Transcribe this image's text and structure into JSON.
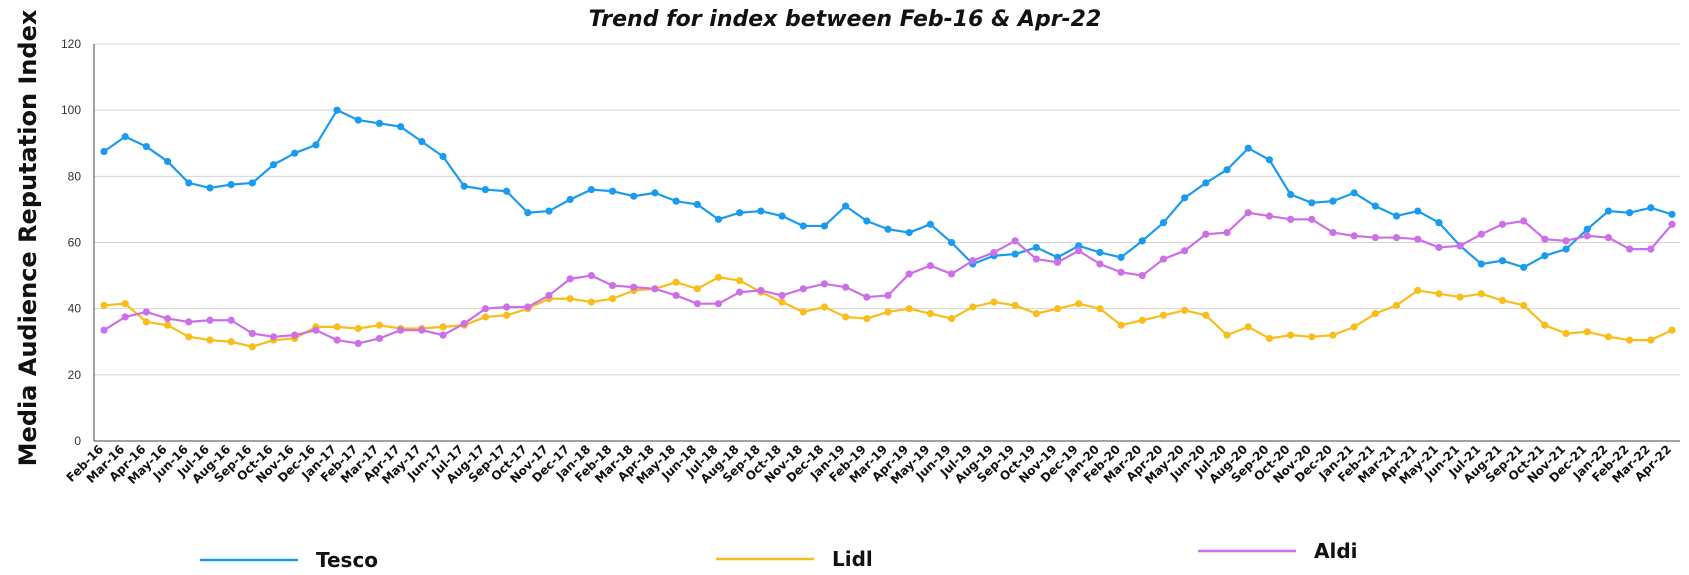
{
  "chart_data": {
    "type": "line",
    "title": "Trend for index between Feb-16 & Apr-22",
    "xlabel": "",
    "ylabel": "Media Audience Reputation Index",
    "ylim": [
      0,
      120
    ],
    "yticks": [
      0,
      20,
      40,
      60,
      80,
      100,
      120
    ],
    "grid": true,
    "legend_position": "bottom",
    "categories": [
      "Feb-16",
      "Mar-16",
      "Apr-16",
      "May-16",
      "Jun-16",
      "Jul-16",
      "Aug-16",
      "Sep-16",
      "Oct-16",
      "Nov-16",
      "Dec-16",
      "Jan-17",
      "Feb-17",
      "Mar-17",
      "Apr-17",
      "May-17",
      "Jun-17",
      "Jul-17",
      "Aug-17",
      "Sep-17",
      "Oct-17",
      "Nov-17",
      "Dec-17",
      "Jan-18",
      "Feb-18",
      "Mar-18",
      "Apr-18",
      "May-18",
      "Jun-18",
      "Jul-18",
      "Aug-18",
      "Sep-18",
      "Oct-18",
      "Nov-18",
      "Dec-18",
      "Jan-19",
      "Feb-19",
      "Mar-19",
      "Apr-19",
      "May-19",
      "Jun-19",
      "Jul-19",
      "Aug-19",
      "Sep-19",
      "Oct-19",
      "Nov-19",
      "Dec-19",
      "Jan-20",
      "Feb-20",
      "Mar-20",
      "Apr-20",
      "May-20",
      "Jun-20",
      "Jul-20",
      "Aug-20",
      "Sep-20",
      "Oct-20",
      "Nov-20",
      "Dec-20",
      "Jan-21",
      "Feb-21",
      "Mar-21",
      "Apr-21",
      "May-21",
      "Jun-21",
      "Jul-21",
      "Aug-21",
      "Sep-21",
      "Oct-21",
      "Nov-21",
      "Dec-21",
      "Jan-22",
      "Feb-22",
      "Mar-22",
      "Apr-22"
    ],
    "series": [
      {
        "name": "Tesco",
        "color": "#1a9bf0",
        "values": [
          87.5,
          92,
          89,
          84.5,
          78,
          76.5,
          77.5,
          78,
          83.5,
          87,
          89.5,
          100,
          97,
          96,
          95,
          90.5,
          86,
          77,
          76,
          75.5,
          69,
          69.5,
          73,
          76,
          75.5,
          74,
          75,
          72.5,
          71.5,
          67,
          69,
          69.5,
          68,
          65,
          65,
          71,
          66.5,
          64,
          63,
          65.5,
          60,
          53.5,
          56,
          56.5,
          58.5,
          55.5,
          59,
          57,
          55.5,
          60.5,
          66,
          73.5,
          78,
          82,
          88.5,
          85,
          74.5,
          72,
          72.5,
          75,
          71,
          68,
          69.5,
          66,
          59,
          53.5,
          54.5,
          52.5,
          56,
          58,
          64,
          69.5,
          69,
          70.5,
          68.5
        ]
      },
      {
        "name": "Lidl",
        "color": "#f9bd1c",
        "values": [
          41,
          41.5,
          36,
          35,
          31.5,
          30.5,
          30,
          28.5,
          30.5,
          31,
          34.5,
          34.5,
          34,
          35,
          34,
          34,
          34.5,
          35,
          37.5,
          38,
          40,
          43,
          43,
          42,
          43,
          45.5,
          46,
          48,
          46,
          49.5,
          48.5,
          45,
          42,
          39,
          40.5,
          37.5,
          37,
          39,
          40,
          38.5,
          37,
          40.5,
          42,
          41,
          38.5,
          40,
          41.5,
          40,
          35,
          36.5,
          38,
          39.5,
          38,
          32,
          34.5,
          31,
          32,
          31.5,
          32,
          34.5,
          38.5,
          41,
          45.5,
          44.5,
          43.5,
          44.5,
          42.5,
          41,
          35,
          32.5,
          33,
          31.5,
          30.5,
          30.5,
          33.5
        ]
      },
      {
        "name": "Aldi",
        "color": "#cd70e8",
        "values": [
          33.5,
          37.5,
          39,
          37,
          36,
          36.5,
          36.5,
          32.5,
          31.5,
          32,
          33.5,
          30.5,
          29.5,
          31,
          33.5,
          33.5,
          32,
          35.5,
          40,
          40.5,
          40.5,
          44,
          49,
          50,
          47,
          46.5,
          46,
          44,
          41.5,
          41.5,
          45,
          45.5,
          44,
          46,
          47.5,
          46.5,
          43.5,
          44,
          50.5,
          53,
          50.5,
          54.5,
          57,
          60.5,
          55,
          54,
          57.5,
          53.5,
          51,
          50,
          55,
          57.5,
          62.5,
          63,
          69,
          68,
          67,
          67,
          63,
          62,
          61.5,
          61.5,
          61,
          58.5,
          59,
          62.5,
          65.5,
          66.5,
          61,
          60.5,
          62,
          61.5,
          58,
          58,
          65.5
        ]
      }
    ]
  }
}
